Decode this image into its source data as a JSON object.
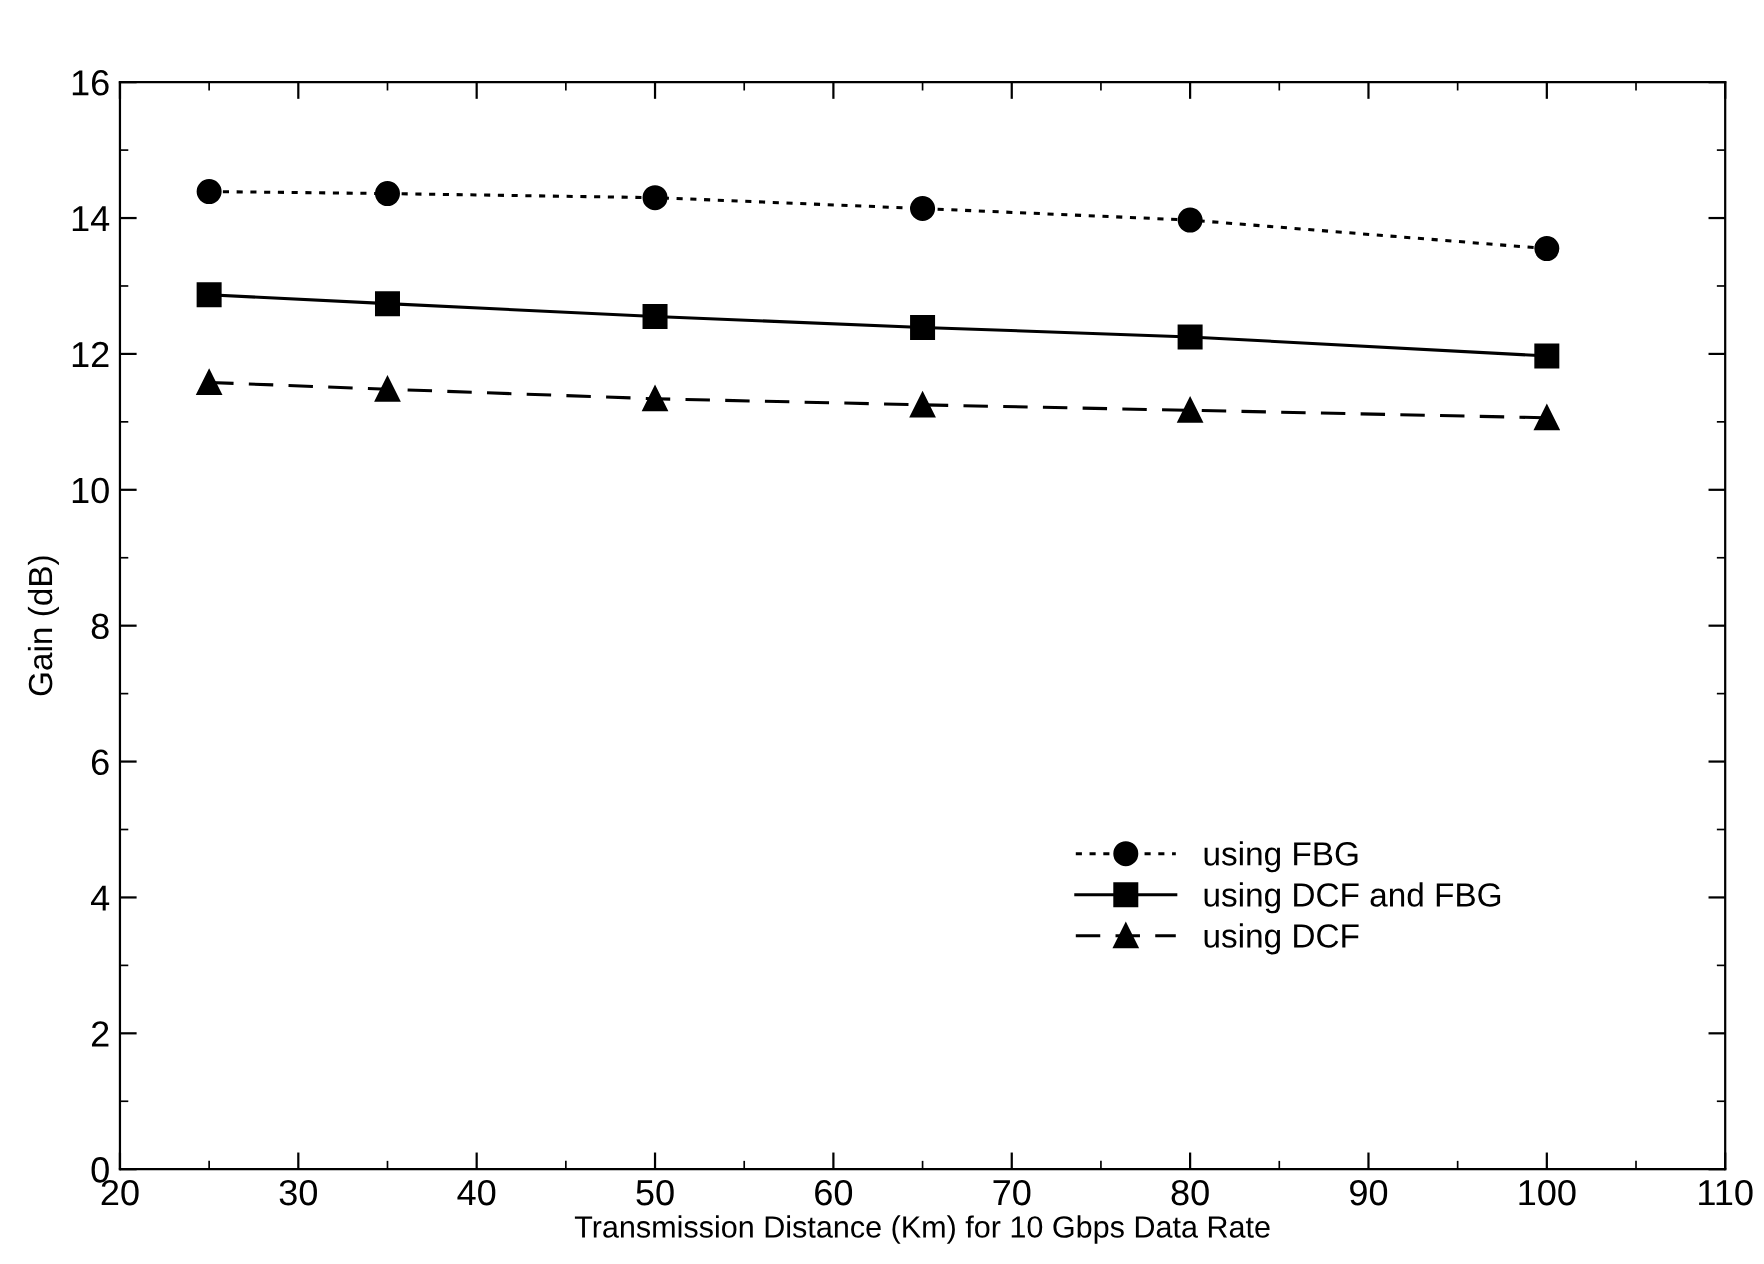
{
  "chart_data": {
    "type": "line",
    "xlabel": "Transmission Distance (Km) for 10 Gbps Data Rate",
    "ylabel": "Gain (dB)",
    "x": [
      25,
      35,
      50,
      65,
      80,
      100
    ],
    "series": [
      {
        "name": "using FBG",
        "color": "#000000",
        "values": [
          14.39,
          14.36,
          14.3,
          14.14,
          13.97,
          13.55
        ],
        "marker": "circle",
        "line_style": "dotted"
      },
      {
        "name": "using DCF and FBG",
        "color": "#000000",
        "values": [
          12.87,
          12.74,
          12.55,
          12.39,
          12.25,
          11.97
        ],
        "marker": "square",
        "line_style": "solid"
      },
      {
        "name": "using DCF",
        "color": "#000000",
        "values": [
          11.58,
          11.48,
          11.34,
          11.25,
          11.17,
          11.06
        ],
        "marker": "triangle",
        "line_style": "dashed"
      }
    ],
    "xlim": [
      20,
      110
    ],
    "xticks": [
      20,
      30,
      40,
      50,
      60,
      70,
      80,
      90,
      100,
      110
    ],
    "ylim": [
      0,
      16
    ],
    "yticks": [
      0,
      2,
      4,
      6,
      8,
      10,
      12,
      14,
      16
    ],
    "grid": false,
    "legend": "bottom right"
  }
}
